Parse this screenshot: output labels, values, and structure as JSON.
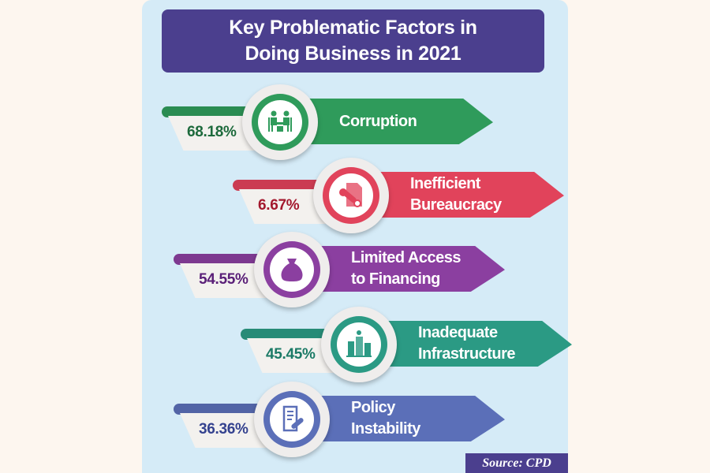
{
  "title_line1": "Key Problematic Factors in",
  "title_line2": "Doing Business in 2021",
  "source": "Source: CPD",
  "chart_data": {
    "type": "table",
    "title": "Key Problematic Factors in Doing Business in 2021",
    "categories": [
      "Corruption",
      "Inefficient Bureaucracy",
      "Limited Access to Financing",
      "Inadequate Infrastructure",
      "Policy Instability"
    ],
    "values": [
      68.18,
      6.67,
      54.55,
      45.45,
      36.36
    ]
  },
  "items": [
    {
      "label1": "Corruption",
      "label2": "",
      "pct": "68.18%",
      "icon": "meeting-icon",
      "color": "#2f9b5b",
      "dark": "#1d6a3c"
    },
    {
      "label1": "Inefficient",
      "label2": "Bureaucracy",
      "pct": "6.67%",
      "icon": "document-stamp-icon",
      "color": "#e1435b",
      "dark": "#a3182d"
    },
    {
      "label1": "Limited Access",
      "label2": "to Financing",
      "pct": "54.55%",
      "icon": "money-bag-icon",
      "color": "#8b3fa0",
      "dark": "#5a1f78"
    },
    {
      "label1": "Inadequate",
      "label2": "Infrastructure",
      "pct": "45.45%",
      "icon": "buildings-icon",
      "color": "#2b9a84",
      "dark": "#1b7a66"
    },
    {
      "label1": "Policy",
      "label2": "Instability",
      "pct": "36.36%",
      "icon": "policy-document-icon",
      "color": "#5b6fb8",
      "dark": "#34428f"
    }
  ]
}
